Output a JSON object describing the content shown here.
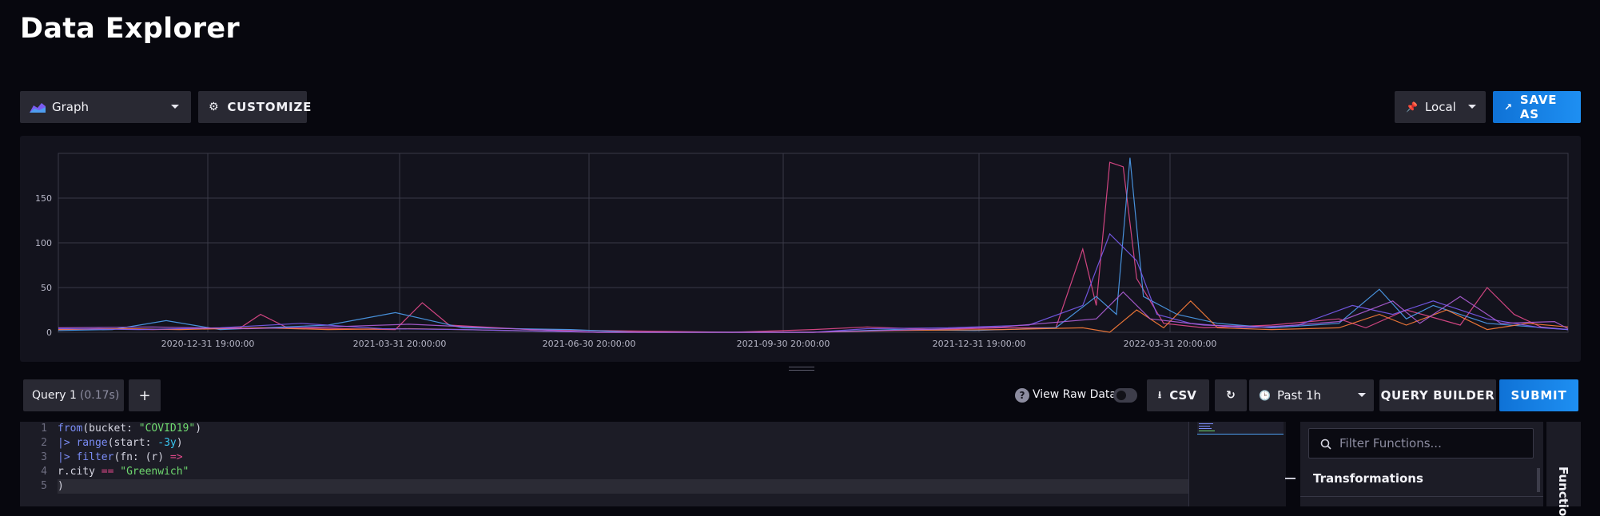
{
  "page": {
    "title": "Data Explorer"
  },
  "toolbar": {
    "graph_type": "Graph",
    "customize": "CUSTOMIZE",
    "timezone": "Local",
    "save_as": "SAVE AS"
  },
  "colors": {
    "background": "#07070e",
    "panel": "#13131d",
    "accent_blue": "#1e8ff2",
    "series": [
      "#e44a8c",
      "#4e9ef0",
      "#ff7e3a",
      "#7a5cf0",
      "#b05fd8"
    ]
  },
  "chart_data": {
    "type": "line",
    "title": "",
    "xlabel": "",
    "ylabel": "",
    "ylim": [
      0,
      200
    ],
    "yticks": [
      "0",
      "50",
      "100",
      "150"
    ],
    "xticks": [
      "2020-12-31 19:00:00",
      "2021-03-31 20:00:00",
      "2021-06-30 20:00:00",
      "2021-09-30 20:00:00",
      "2021-12-31 19:00:00",
      "2022-03-31 20:00:00"
    ],
    "grid": true,
    "series": [
      {
        "color": "#e44a8c",
        "values": [
          [
            0,
            3
          ],
          [
            30,
            4
          ],
          [
            70,
            3
          ],
          [
            135,
            5
          ],
          [
            150,
            20
          ],
          [
            170,
            5
          ],
          [
            250,
            3
          ],
          [
            270,
            33
          ],
          [
            290,
            8
          ],
          [
            350,
            3
          ],
          [
            400,
            2
          ],
          [
            500,
            0
          ],
          [
            560,
            3
          ],
          [
            600,
            6
          ],
          [
            650,
            3
          ],
          [
            700,
            5
          ],
          [
            740,
            5
          ],
          [
            760,
            93
          ],
          [
            770,
            30
          ],
          [
            780,
            190
          ],
          [
            790,
            185
          ],
          [
            800,
            60
          ],
          [
            820,
            10
          ],
          [
            850,
            5
          ],
          [
            900,
            8
          ],
          [
            950,
            15
          ],
          [
            970,
            5
          ],
          [
            1000,
            25
          ],
          [
            1040,
            8
          ],
          [
            1060,
            50
          ],
          [
            1080,
            20
          ],
          [
            1100,
            6
          ],
          [
            1120,
            3
          ]
        ]
      },
      {
        "color": "#4e9ef0",
        "values": [
          [
            0,
            2
          ],
          [
            40,
            3
          ],
          [
            80,
            13
          ],
          [
            120,
            3
          ],
          [
            200,
            8
          ],
          [
            250,
            22
          ],
          [
            300,
            5
          ],
          [
            380,
            3
          ],
          [
            430,
            0
          ],
          [
            560,
            0
          ],
          [
            620,
            3
          ],
          [
            680,
            2
          ],
          [
            740,
            5
          ],
          [
            770,
            40
          ],
          [
            785,
            20
          ],
          [
            795,
            195
          ],
          [
            805,
            40
          ],
          [
            830,
            20
          ],
          [
            860,
            10
          ],
          [
            900,
            5
          ],
          [
            950,
            10
          ],
          [
            980,
            48
          ],
          [
            1000,
            15
          ],
          [
            1020,
            30
          ],
          [
            1060,
            10
          ],
          [
            1120,
            3
          ]
        ]
      },
      {
        "color": "#ff7e3a",
        "values": [
          [
            0,
            3
          ],
          [
            50,
            4
          ],
          [
            90,
            3
          ],
          [
            150,
            5
          ],
          [
            200,
            3
          ],
          [
            260,
            4
          ],
          [
            300,
            3
          ],
          [
            400,
            0
          ],
          [
            560,
            0
          ],
          [
            620,
            2
          ],
          [
            700,
            3
          ],
          [
            760,
            5
          ],
          [
            780,
            0
          ],
          [
            800,
            25
          ],
          [
            820,
            5
          ],
          [
            840,
            35
          ],
          [
            860,
            5
          ],
          [
            900,
            3
          ],
          [
            950,
            5
          ],
          [
            980,
            20
          ],
          [
            1000,
            8
          ],
          [
            1030,
            25
          ],
          [
            1060,
            3
          ],
          [
            1090,
            10
          ],
          [
            1120,
            6
          ]
        ]
      },
      {
        "color": "#7a5cf0",
        "values": [
          [
            0,
            4
          ],
          [
            60,
            3
          ],
          [
            120,
            5
          ],
          [
            180,
            10
          ],
          [
            240,
            4
          ],
          [
            300,
            3
          ],
          [
            400,
            0
          ],
          [
            560,
            0
          ],
          [
            600,
            4
          ],
          [
            660,
            5
          ],
          [
            720,
            8
          ],
          [
            760,
            30
          ],
          [
            780,
            110
          ],
          [
            800,
            80
          ],
          [
            815,
            20
          ],
          [
            840,
            10
          ],
          [
            880,
            5
          ],
          [
            920,
            8
          ],
          [
            960,
            30
          ],
          [
            990,
            20
          ],
          [
            1020,
            35
          ],
          [
            1060,
            15
          ],
          [
            1100,
            5
          ],
          [
            1120,
            3
          ]
        ]
      },
      {
        "color": "#b05fd8",
        "values": [
          [
            0,
            5
          ],
          [
            70,
            6
          ],
          [
            140,
            4
          ],
          [
            200,
            6
          ],
          [
            260,
            9
          ],
          [
            320,
            5
          ],
          [
            400,
            0
          ],
          [
            560,
            0
          ],
          [
            640,
            3
          ],
          [
            700,
            6
          ],
          [
            770,
            15
          ],
          [
            790,
            45
          ],
          [
            810,
            15
          ],
          [
            850,
            8
          ],
          [
            900,
            6
          ],
          [
            950,
            12
          ],
          [
            990,
            35
          ],
          [
            1010,
            10
          ],
          [
            1040,
            40
          ],
          [
            1070,
            10
          ],
          [
            1110,
            12
          ],
          [
            1120,
            4
          ]
        ]
      }
    ]
  },
  "query": {
    "tab_label": "Query 1",
    "tab_timing": "(0.17s)",
    "add_label": "+",
    "view_raw": "View Raw Data",
    "help": "?",
    "csv": "CSV",
    "time_range": "Past 1h",
    "query_builder": "QUERY BUILDER",
    "submit": "SUBMIT"
  },
  "editor": {
    "line_numbers": [
      "1",
      "2",
      "3",
      "4",
      "5"
    ]
  },
  "functions": {
    "search_placeholder": "Filter Functions...",
    "section": "Transformations",
    "tab_label": "Functio"
  }
}
